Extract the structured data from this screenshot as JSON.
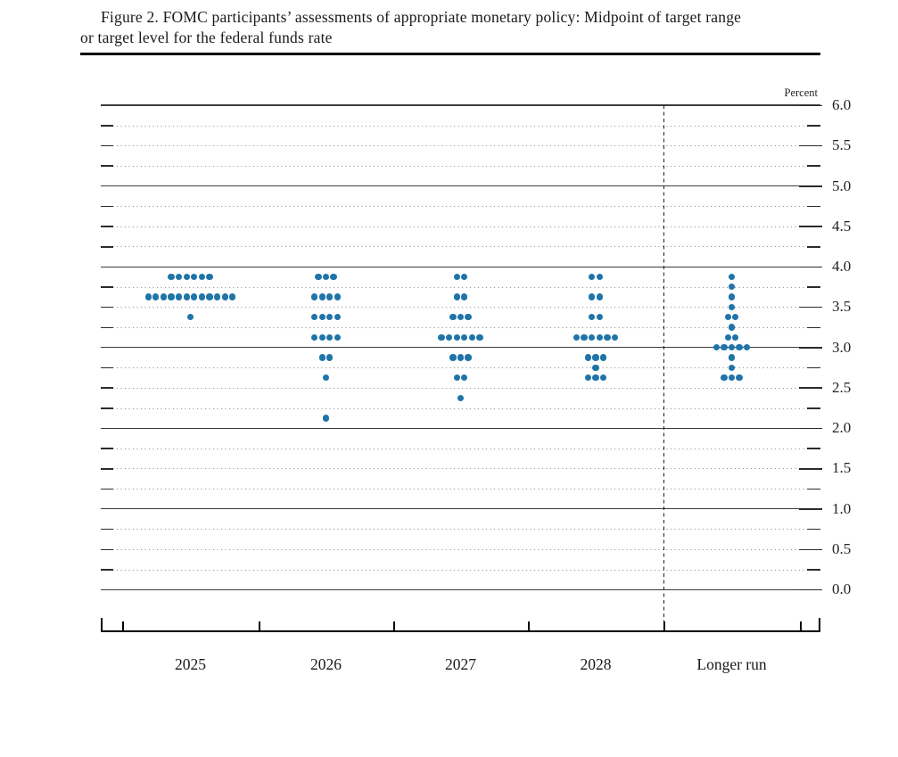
{
  "title": {
    "line1": "Figure 2. FOMC participants’ assessments of appropriate monetary policy: Midpoint of target range",
    "line2": "or target level for the federal funds rate"
  },
  "colors": {
    "dot": "#1f74a8",
    "grid_solid": "#3c3c3c",
    "grid_dotted": "#8a8a8a",
    "axis": "#000000"
  },
  "chart_data": {
    "type": "scatter",
    "title": "FOMC participants’ assessments of appropriate monetary policy: Midpoint of target range or target level for the federal funds rate",
    "ylabel": "Percent",
    "xlabel": "",
    "ylim": [
      0.0,
      6.0
    ],
    "grid_interval": 0.25,
    "label_interval": 0.5,
    "ytick_labels": [
      "0.0",
      "0.5",
      "1.0",
      "1.5",
      "2.0",
      "2.5",
      "3.0",
      "3.5",
      "4.0",
      "4.5",
      "5.0",
      "5.5",
      "6.0"
    ],
    "categories": [
      "2025",
      "2026",
      "2027",
      "2028",
      "Longer run"
    ],
    "legend": "none",
    "grid": "horizontal dotted at 0.25 steps, solid at integers; dashed vertical separator before Longer run",
    "series": [
      {
        "name": "2025",
        "dots": [
          {
            "value": 3.875,
            "count": 6
          },
          {
            "value": 3.625,
            "count": 12
          },
          {
            "value": 3.375,
            "count": 1
          }
        ]
      },
      {
        "name": "2026",
        "dots": [
          {
            "value": 3.875,
            "count": 3
          },
          {
            "value": 3.625,
            "count": 4
          },
          {
            "value": 3.375,
            "count": 4
          },
          {
            "value": 3.125,
            "count": 4
          },
          {
            "value": 2.875,
            "count": 2
          },
          {
            "value": 2.625,
            "count": 1
          },
          {
            "value": 2.125,
            "count": 1
          }
        ]
      },
      {
        "name": "2027",
        "dots": [
          {
            "value": 3.875,
            "count": 2
          },
          {
            "value": 3.625,
            "count": 2
          },
          {
            "value": 3.375,
            "count": 3
          },
          {
            "value": 3.125,
            "count": 6
          },
          {
            "value": 2.875,
            "count": 3
          },
          {
            "value": 2.625,
            "count": 2
          },
          {
            "value": 2.375,
            "count": 1
          }
        ]
      },
      {
        "name": "2028",
        "dots": [
          {
            "value": 3.875,
            "count": 2
          },
          {
            "value": 3.625,
            "count": 2
          },
          {
            "value": 3.375,
            "count": 2
          },
          {
            "value": 3.125,
            "count": 6
          },
          {
            "value": 2.875,
            "count": 3
          },
          {
            "value": 2.75,
            "count": 1
          },
          {
            "value": 2.625,
            "count": 3
          }
        ]
      },
      {
        "name": "Longer run",
        "dots": [
          {
            "value": 3.875,
            "count": 1
          },
          {
            "value": 3.75,
            "count": 1
          },
          {
            "value": 3.625,
            "count": 1
          },
          {
            "value": 3.5,
            "count": 1
          },
          {
            "value": 3.375,
            "count": 2
          },
          {
            "value": 3.25,
            "count": 1
          },
          {
            "value": 3.125,
            "count": 2
          },
          {
            "value": 3.0,
            "count": 5
          },
          {
            "value": 2.875,
            "count": 1
          },
          {
            "value": 2.75,
            "count": 1
          },
          {
            "value": 2.625,
            "count": 3
          }
        ]
      }
    ]
  }
}
